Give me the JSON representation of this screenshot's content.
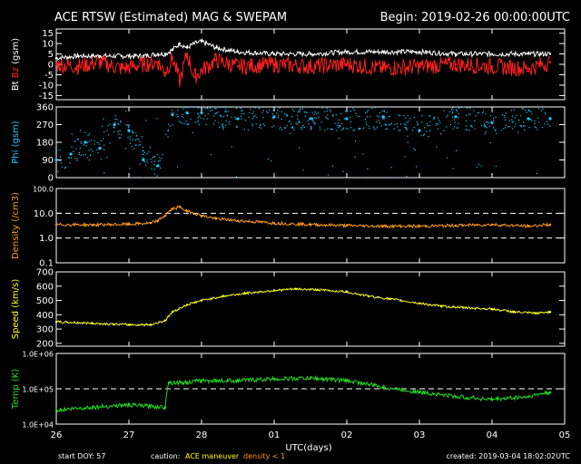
{
  "header": {
    "title": "ACE RTSW (Estimated) MAG & SWEPAM",
    "begin": "Begin: 2019-02-26 00:00:00UTC"
  },
  "footer": {
    "start_doy": "start DOY:  57",
    "caution": "caution:",
    "maneuver": "ACE maneuver",
    "density_note": "density < 1",
    "created": "created: 2019-03-04 18:02:02UTC"
  },
  "colors": {
    "bt": "#ffffff",
    "bz": "#ff2020",
    "phi": "#22c8ff",
    "density": "#ff9a1a",
    "speed": "#ffff22",
    "temp": "#22dd22",
    "maneuver": "#ffff00",
    "density_note": "#ff9a1a"
  },
  "chart_data": [
    {
      "type": "line",
      "panel": "mag",
      "ylabel_parts": [
        "Bt",
        "Bz",
        "(gsm)"
      ],
      "yticks": [
        "-15",
        "-10",
        "-5",
        "0",
        "5",
        "10",
        "15"
      ],
      "ylim": [
        -17,
        17
      ],
      "series": [
        {
          "name": "Bt",
          "x": [
            0,
            0.3,
            0.6,
            0.9,
            1.2,
            1.4,
            1.5,
            1.6,
            1.7,
            1.8,
            1.9,
            2.0,
            2.2,
            2.5,
            3.0,
            3.5,
            4.0,
            4.5,
            5.0,
            5.5,
            6.0,
            6.5,
            6.8
          ],
          "values": [
            3,
            4,
            4,
            4,
            4,
            5,
            5,
            7,
            10,
            8,
            10,
            11,
            8,
            6,
            5,
            5,
            6,
            6,
            6,
            5,
            5,
            5,
            5
          ]
        },
        {
          "name": "Bz",
          "x": [
            0,
            0.3,
            0.6,
            0.9,
            1.2,
            1.4,
            1.5,
            1.6,
            1.7,
            1.8,
            1.9,
            2.0,
            2.2,
            2.5,
            3.0,
            3.5,
            4.0,
            4.5,
            5.0,
            5.5,
            6.0,
            6.5,
            6.8
          ],
          "values": [
            0,
            -1,
            1,
            -2,
            0,
            1,
            -4,
            3,
            -8,
            5,
            -6,
            -3,
            2,
            -1,
            0,
            -1,
            0,
            -2,
            -1,
            0,
            -1,
            -2,
            1
          ]
        }
      ]
    },
    {
      "type": "scatter",
      "panel": "phi",
      "ylabel": "Phi (gsm)",
      "yticks": [
        "0",
        "90",
        "180",
        "270",
        "360"
      ],
      "ylim": [
        0,
        360
      ],
      "x": [
        0,
        0.2,
        0.4,
        0.6,
        0.8,
        1.0,
        1.2,
        1.4,
        1.6,
        1.8,
        2.0,
        2.5,
        3.0,
        3.5,
        4.0,
        4.5,
        5.0,
        5.5,
        6.0,
        6.5,
        6.8
      ],
      "values": [
        90,
        120,
        180,
        150,
        270,
        240,
        90,
        60,
        320,
        330,
        330,
        300,
        310,
        300,
        300,
        310,
        240,
        310,
        280,
        300,
        300
      ]
    },
    {
      "type": "line",
      "panel": "density",
      "scale": "log",
      "ylabel": "Density (/cm3)",
      "yticks": [
        "0.1",
        "1.0",
        "10.0",
        "100.0"
      ],
      "ylim": [
        0.1,
        100
      ],
      "x": [
        0,
        0.5,
        1.0,
        1.3,
        1.4,
        1.5,
        1.6,
        1.7,
        1.8,
        2.0,
        2.2,
        2.5,
        3.0,
        3.5,
        4.0,
        4.5,
        5.0,
        5.5,
        6.0,
        6.5,
        6.8
      ],
      "values": [
        3.5,
        3.4,
        3.6,
        4,
        5,
        8,
        15,
        18,
        12,
        8,
        6,
        5,
        4,
        3.5,
        3.2,
        3,
        3,
        3.2,
        3.5,
        3.0,
        3.5
      ]
    },
    {
      "type": "line",
      "panel": "speed",
      "ylabel": "Speed (km/s)",
      "yticks": [
        "200",
        "300",
        "400",
        "500",
        "600",
        "700"
      ],
      "ylim": [
        180,
        700
      ],
      "x": [
        0,
        0.5,
        1.0,
        1.3,
        1.5,
        1.6,
        1.8,
        2.0,
        2.3,
        2.6,
        3.0,
        3.3,
        3.6,
        4.0,
        4.3,
        4.6,
        5.0,
        5.3,
        5.6,
        6.0,
        6.3,
        6.6,
        6.8
      ],
      "values": [
        350,
        340,
        330,
        330,
        360,
        420,
        470,
        500,
        530,
        550,
        570,
        580,
        575,
        560,
        530,
        510,
        480,
        460,
        450,
        440,
        420,
        410,
        420
      ]
    },
    {
      "type": "line",
      "panel": "temp",
      "scale": "log",
      "ylabel": "Temp (K)",
      "yticks": [
        "1.0E+04",
        "1.0E+05",
        "1.0E+06"
      ],
      "ylim": [
        10000,
        1000000
      ],
      "x": [
        0,
        0.5,
        1.0,
        1.5,
        1.55,
        1.8,
        2.0,
        2.5,
        3.0,
        3.5,
        4.0,
        4.5,
        5.0,
        5.5,
        6.0,
        6.5,
        6.8
      ],
      "values": [
        25000,
        30000,
        35000,
        30000,
        150000,
        150000,
        170000,
        170000,
        190000,
        200000,
        170000,
        110000,
        80000,
        60000,
        50000,
        60000,
        80000
      ]
    }
  ],
  "xaxis": {
    "label": "UTC(days)",
    "ticks": [
      "26",
      "27",
      "28",
      "01",
      "02",
      "03",
      "04",
      "05"
    ],
    "range": [
      0,
      7
    ]
  }
}
